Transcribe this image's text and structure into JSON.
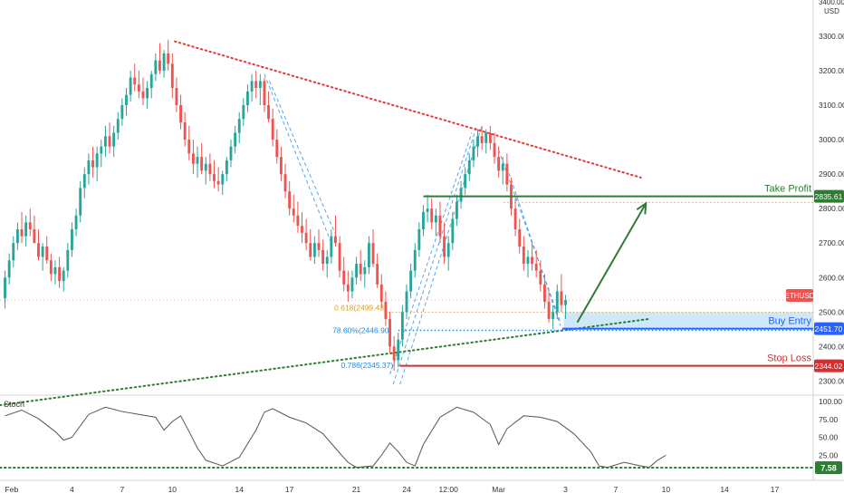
{
  "chart_data": {
    "type": "candlestick",
    "symbol": "ETHUSD",
    "currency": "USD",
    "price_axis": {
      "ticks": [
        2300,
        2400,
        2500,
        2600,
        2700,
        2800,
        2900,
        3000,
        3100,
        3200,
        3300
      ],
      "tick_labels": [
        "2300.00",
        "2400.00",
        "2500.00",
        "2600.00",
        "2700.00",
        "2800.00",
        "2900.00",
        "3000.00",
        "3100.00",
        "3200.00",
        "3300.00"
      ],
      "top_label": "3400.00",
      "range": [
        2260,
        3400
      ]
    },
    "time_axis": {
      "labels": [
        {
          "t": 0,
          "text": "Feb"
        },
        {
          "t": 4,
          "text": "4"
        },
        {
          "t": 7,
          "text": "7"
        },
        {
          "t": 10,
          "text": "10"
        },
        {
          "t": 14,
          "text": "14"
        },
        {
          "t": 17,
          "text": "17"
        },
        {
          "t": 21,
          "text": "21"
        },
        {
          "t": 24,
          "text": "24"
        },
        {
          "t": 26.5,
          "text": "12:00"
        },
        {
          "t": 29.5,
          "text": "Mar"
        },
        {
          "t": 33.5,
          "text": "3"
        },
        {
          "t": 36.5,
          "text": "7"
        },
        {
          "t": 39.5,
          "text": "10"
        },
        {
          "t": 43,
          "text": "14"
        },
        {
          "t": 46,
          "text": "17"
        }
      ],
      "range": [
        0,
        48.5
      ]
    },
    "candles": [
      [
        0.0,
        2540,
        2620,
        2510,
        2600
      ],
      [
        0.25,
        2600,
        2670,
        2580,
        2650
      ],
      [
        0.5,
        2650,
        2720,
        2630,
        2700
      ],
      [
        0.75,
        2700,
        2760,
        2680,
        2740
      ],
      [
        1.0,
        2740,
        2790,
        2700,
        2720
      ],
      [
        1.25,
        2720,
        2780,
        2690,
        2760
      ],
      [
        1.5,
        2760,
        2800,
        2720,
        2740
      ],
      [
        1.75,
        2740,
        2780,
        2700,
        2700
      ],
      [
        2.0,
        2700,
        2740,
        2650,
        2660
      ],
      [
        2.25,
        2660,
        2700,
        2620,
        2690
      ],
      [
        2.5,
        2690,
        2720,
        2640,
        2650
      ],
      [
        2.75,
        2650,
        2670,
        2590,
        2610
      ],
      [
        3.0,
        2610,
        2650,
        2580,
        2630
      ],
      [
        3.25,
        2630,
        2660,
        2570,
        2590
      ],
      [
        3.5,
        2590,
        2630,
        2560,
        2620
      ],
      [
        3.75,
        2620,
        2700,
        2600,
        2680
      ],
      [
        4.0,
        2680,
        2760,
        2660,
        2740
      ],
      [
        4.25,
        2740,
        2800,
        2720,
        2780
      ],
      [
        4.5,
        2780,
        2880,
        2760,
        2860
      ],
      [
        4.75,
        2860,
        2920,
        2830,
        2900
      ],
      [
        5.0,
        2900,
        2960,
        2870,
        2940
      ],
      [
        5.25,
        2940,
        2980,
        2890,
        2920
      ],
      [
        5.5,
        2920,
        2980,
        2880,
        2960
      ],
      [
        5.75,
        2960,
        3000,
        2920,
        2980
      ],
      [
        6.0,
        2980,
        3040,
        2950,
        3010
      ],
      [
        6.25,
        3010,
        3050,
        2960,
        2980
      ],
      [
        6.5,
        2980,
        3040,
        2950,
        3020
      ],
      [
        6.75,
        3020,
        3080,
        3000,
        3060
      ],
      [
        7.0,
        3060,
        3120,
        3040,
        3100
      ],
      [
        7.25,
        3100,
        3150,
        3070,
        3130
      ],
      [
        7.5,
        3130,
        3200,
        3110,
        3180
      ],
      [
        7.75,
        3180,
        3220,
        3140,
        3160
      ],
      [
        8.0,
        3160,
        3200,
        3120,
        3140
      ],
      [
        8.25,
        3140,
        3180,
        3100,
        3120
      ],
      [
        8.5,
        3120,
        3170,
        3090,
        3150
      ],
      [
        8.75,
        3150,
        3200,
        3120,
        3190
      ],
      [
        9.0,
        3190,
        3250,
        3170,
        3230
      ],
      [
        9.25,
        3230,
        3280,
        3190,
        3200
      ],
      [
        9.5,
        3200,
        3260,
        3180,
        3250
      ],
      [
        9.75,
        3250,
        3290,
        3200,
        3220
      ],
      [
        10.0,
        3220,
        3250,
        3120,
        3150
      ],
      [
        10.25,
        3150,
        3180,
        3080,
        3100
      ],
      [
        10.5,
        3100,
        3130,
        3030,
        3050
      ],
      [
        10.75,
        3050,
        3080,
        2980,
        3000
      ],
      [
        11.0,
        3000,
        3040,
        2940,
        2960
      ],
      [
        11.25,
        2960,
        3000,
        2900,
        2930
      ],
      [
        11.5,
        2930,
        2980,
        2890,
        2950
      ],
      [
        11.75,
        2950,
        2990,
        2900,
        2910
      ],
      [
        12.0,
        2910,
        2950,
        2870,
        2930
      ],
      [
        12.25,
        2930,
        2960,
        2880,
        2900
      ],
      [
        12.5,
        2900,
        2940,
        2860,
        2880
      ],
      [
        12.75,
        2880,
        2920,
        2850,
        2870
      ],
      [
        13.0,
        2870,
        2910,
        2840,
        2900
      ],
      [
        13.25,
        2900,
        2950,
        2880,
        2940
      ],
      [
        13.5,
        2940,
        3000,
        2920,
        2980
      ],
      [
        13.75,
        2980,
        3040,
        2960,
        3020
      ],
      [
        14.0,
        3020,
        3080,
        2990,
        3060
      ],
      [
        14.25,
        3060,
        3120,
        3040,
        3100
      ],
      [
        14.5,
        3100,
        3160,
        3080,
        3140
      ],
      [
        14.75,
        3140,
        3190,
        3110,
        3170
      ],
      [
        15.0,
        3170,
        3200,
        3120,
        3150
      ],
      [
        15.25,
        3150,
        3190,
        3100,
        3170
      ],
      [
        15.5,
        3170,
        3180,
        3080,
        3100
      ],
      [
        15.75,
        3100,
        3140,
        3050,
        3060
      ],
      [
        16.0,
        3060,
        3090,
        2980,
        3000
      ],
      [
        16.25,
        3000,
        3030,
        2930,
        2950
      ],
      [
        16.5,
        2950,
        2980,
        2880,
        2900
      ],
      [
        16.75,
        2900,
        2930,
        2830,
        2850
      ],
      [
        17.0,
        2850,
        2880,
        2780,
        2800
      ],
      [
        17.25,
        2800,
        2840,
        2760,
        2780
      ],
      [
        17.5,
        2780,
        2820,
        2730,
        2750
      ],
      [
        17.75,
        2750,
        2790,
        2700,
        2730
      ],
      [
        18.0,
        2730,
        2770,
        2680,
        2700
      ],
      [
        18.25,
        2700,
        2740,
        2650,
        2660
      ],
      [
        18.5,
        2660,
        2720,
        2640,
        2700
      ],
      [
        18.75,
        2700,
        2740,
        2660,
        2680
      ],
      [
        19.0,
        2680,
        2710,
        2620,
        2640
      ],
      [
        19.25,
        2640,
        2680,
        2600,
        2660
      ],
      [
        19.5,
        2660,
        2740,
        2640,
        2720
      ],
      [
        19.75,
        2720,
        2780,
        2690,
        2700
      ],
      [
        20.0,
        2700,
        2720,
        2600,
        2620
      ],
      [
        20.25,
        2620,
        2660,
        2560,
        2580
      ],
      [
        20.5,
        2580,
        2620,
        2530,
        2560
      ],
      [
        20.75,
        2560,
        2620,
        2540,
        2600
      ],
      [
        21.0,
        2600,
        2660,
        2580,
        2640
      ],
      [
        21.25,
        2640,
        2680,
        2590,
        2610
      ],
      [
        21.5,
        2610,
        2650,
        2570,
        2630
      ],
      [
        21.75,
        2630,
        2720,
        2610,
        2700
      ],
      [
        22.0,
        2700,
        2740,
        2630,
        2640
      ],
      [
        22.25,
        2640,
        2670,
        2570,
        2580
      ],
      [
        22.5,
        2580,
        2610,
        2510,
        2530
      ],
      [
        22.75,
        2530,
        2560,
        2460,
        2480
      ],
      [
        23.0,
        2480,
        2500,
        2380,
        2400
      ],
      [
        23.25,
        2400,
        2430,
        2330,
        2360
      ],
      [
        23.5,
        2360,
        2440,
        2340,
        2420
      ],
      [
        23.75,
        2420,
        2520,
        2400,
        2500
      ],
      [
        24.0,
        2500,
        2580,
        2480,
        2560
      ],
      [
        24.25,
        2560,
        2640,
        2540,
        2620
      ],
      [
        24.5,
        2620,
        2700,
        2600,
        2680
      ],
      [
        24.75,
        2680,
        2760,
        2660,
        2740
      ],
      [
        25.0,
        2740,
        2810,
        2720,
        2790
      ],
      [
        25.25,
        2790,
        2840,
        2760,
        2800
      ],
      [
        25.5,
        2800,
        2830,
        2740,
        2760
      ],
      [
        25.75,
        2760,
        2800,
        2720,
        2780
      ],
      [
        26.0,
        2780,
        2820,
        2700,
        2720
      ],
      [
        26.25,
        2720,
        2760,
        2640,
        2660
      ],
      [
        26.5,
        2660,
        2720,
        2620,
        2700
      ],
      [
        26.75,
        2700,
        2790,
        2680,
        2770
      ],
      [
        27.0,
        2770,
        2840,
        2750,
        2820
      ],
      [
        27.25,
        2820,
        2880,
        2800,
        2860
      ],
      [
        27.5,
        2860,
        2920,
        2840,
        2900
      ],
      [
        27.75,
        2900,
        2960,
        2880,
        2940
      ],
      [
        28.0,
        2940,
        3000,
        2920,
        2980
      ],
      [
        28.25,
        2980,
        3030,
        2950,
        3010
      ],
      [
        28.5,
        3010,
        3040,
        2970,
        2990
      ],
      [
        28.75,
        2990,
        3030,
        2960,
        3020
      ],
      [
        29.0,
        3020,
        3040,
        2970,
        2990
      ],
      [
        29.25,
        2990,
        3020,
        2930,
        2950
      ],
      [
        29.5,
        2950,
        2980,
        2890,
        2910
      ],
      [
        29.75,
        2910,
        2950,
        2870,
        2930
      ],
      [
        30.0,
        2930,
        2960,
        2850,
        2870
      ],
      [
        30.25,
        2870,
        2890,
        2780,
        2800
      ],
      [
        30.5,
        2800,
        2830,
        2720,
        2740
      ],
      [
        30.75,
        2740,
        2770,
        2670,
        2690
      ],
      [
        31.0,
        2690,
        2720,
        2620,
        2640
      ],
      [
        31.25,
        2640,
        2680,
        2600,
        2660
      ],
      [
        31.5,
        2660,
        2700,
        2620,
        2640
      ],
      [
        31.75,
        2640,
        2680,
        2600,
        2620
      ],
      [
        32.0,
        2620,
        2650,
        2560,
        2580
      ],
      [
        32.25,
        2580,
        2610,
        2510,
        2530
      ],
      [
        32.5,
        2530,
        2560,
        2470,
        2480
      ],
      [
        32.75,
        2480,
        2520,
        2450,
        2500
      ],
      [
        33.0,
        2500,
        2580,
        2480,
        2560
      ],
      [
        33.25,
        2560,
        2610,
        2500,
        2520
      ],
      [
        33.5,
        2520,
        2550,
        2480,
        2535
      ]
    ],
    "last_price_label": "ETHUSD",
    "fib_levels": [
      {
        "label": "0.618(2499.43)",
        "price": 2499.43
      },
      {
        "label": "78.60%(2446.90)",
        "price": 2446.9
      },
      {
        "label": "0.786(2345.37)",
        "price": 2345.37
      }
    ],
    "levels": [
      {
        "name": "Take Profit",
        "price": 2835.61,
        "label": "2835.61"
      },
      {
        "name": "Buy Entry",
        "price": 2451.7,
        "label": "2451.70"
      },
      {
        "name": "Stop Loss",
        "price": 2344.02,
        "label": "2344.02"
      }
    ],
    "stoch": {
      "title": "Stoch",
      "ticks": [
        0,
        25,
        50,
        75,
        100
      ],
      "tick_labels": [
        "0.00",
        "25.00",
        "50.00",
        "75.00",
        "100.00"
      ],
      "level_label": "7.58",
      "level_value": 7.58,
      "points": [
        [
          0,
          80
        ],
        [
          1,
          88
        ],
        [
          2,
          76
        ],
        [
          3,
          58
        ],
        [
          3.5,
          46
        ],
        [
          4,
          50
        ],
        [
          5,
          82
        ],
        [
          6,
          92
        ],
        [
          7,
          86
        ],
        [
          8,
          82
        ],
        [
          9,
          78
        ],
        [
          9.5,
          60
        ],
        [
          10,
          72
        ],
        [
          10.5,
          80
        ],
        [
          11,
          58
        ],
        [
          11.5,
          35
        ],
        [
          12,
          18
        ],
        [
          13,
          10
        ],
        [
          14,
          22
        ],
        [
          15,
          60
        ],
        [
          15.5,
          85
        ],
        [
          16,
          90
        ],
        [
          17,
          78
        ],
        [
          18,
          70
        ],
        [
          19,
          55
        ],
        [
          20,
          28
        ],
        [
          20.5,
          15
        ],
        [
          21,
          8
        ],
        [
          22,
          10
        ],
        [
          22.5,
          25
        ],
        [
          23,
          42
        ],
        [
          23.5,
          30
        ],
        [
          24,
          15
        ],
        [
          24.5,
          10
        ],
        [
          25,
          40
        ],
        [
          26,
          78
        ],
        [
          27,
          92
        ],
        [
          28,
          85
        ],
        [
          29,
          68
        ],
        [
          29.5,
          40
        ],
        [
          30,
          62
        ],
        [
          31,
          80
        ],
        [
          32,
          78
        ],
        [
          33,
          72
        ],
        [
          34,
          55
        ],
        [
          35,
          30
        ],
        [
          35.5,
          10
        ],
        [
          36,
          8
        ],
        [
          37,
          15
        ],
        [
          38,
          10
        ],
        [
          38.5,
          8
        ],
        [
          39,
          18
        ],
        [
          39.5,
          25
        ]
      ]
    },
    "colors": {
      "up": "#26a69a",
      "down": "#ef5350",
      "take_profit": "#2e7d32",
      "buy_entry": "#2962ff",
      "stop_loss": "#d32f2f",
      "resistance": "#e53935",
      "support": "#2e7d32",
      "fib": "#1e88e5",
      "zone": "#bde0f7",
      "stoch": "#555555"
    }
  }
}
